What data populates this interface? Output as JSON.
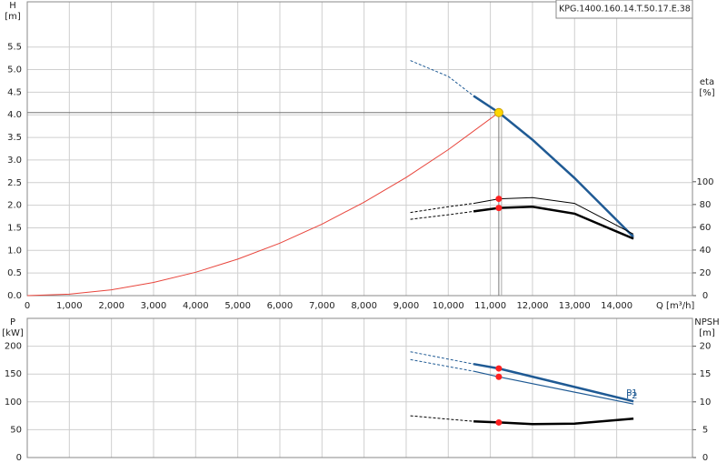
{
  "chart_data": [
    {
      "type": "line",
      "title": "KPG.1400.160.14.T.50.17.E.38",
      "ylabel": "H",
      "yunit": "[m]",
      "y2label": "eta",
      "y2unit": "[%]",
      "xlabel": "Q [m³/h]",
      "xlim": [
        0,
        15800
      ],
      "xticks": [
        {
          "value": 0,
          "label": "0"
        },
        {
          "value": 1000,
          "label": "1,000"
        },
        {
          "value": 2000,
          "label": "2,000"
        },
        {
          "value": 3000,
          "label": "3,000"
        },
        {
          "value": 4000,
          "label": "4,000"
        },
        {
          "value": 5000,
          "label": "5,000"
        },
        {
          "value": 6000,
          "label": "6,000"
        },
        {
          "value": 7000,
          "label": "7,000"
        },
        {
          "value": 8000,
          "label": "8,000"
        },
        {
          "value": 9000,
          "label": "9,000"
        },
        {
          "value": 10000,
          "label": "10,000"
        },
        {
          "value": 11000,
          "label": "11,000"
        },
        {
          "value": 12000,
          "label": "12,000"
        },
        {
          "value": 13000,
          "label": "13,000"
        },
        {
          "value": 14000,
          "label": "14,000"
        }
      ],
      "ylim": [
        0,
        6.5
      ],
      "yticks": [
        {
          "value": 0,
          "label": "0.0"
        },
        {
          "value": 0.5,
          "label": "0.5"
        },
        {
          "value": 1,
          "label": "1.0"
        },
        {
          "value": 1.5,
          "label": "1.5"
        },
        {
          "value": 2,
          "label": "2.0"
        },
        {
          "value": 2.5,
          "label": "2.5"
        },
        {
          "value": 3,
          "label": "3.0"
        },
        {
          "value": 3.5,
          "label": "3.5"
        },
        {
          "value": 4,
          "label": "4.0"
        },
        {
          "value": 4.5,
          "label": "4.5"
        },
        {
          "value": 5,
          "label": "5.0"
        },
        {
          "value": 5.5,
          "label": "5.5"
        }
      ],
      "y2lim": [
        0,
        258
      ],
      "y2ticks": [
        0,
        20,
        40,
        60,
        80,
        100
      ],
      "grid": true,
      "series": [
        {
          "color": "#e8453c",
          "width": 1,
          "x": [
            0,
            1000,
            2000,
            3000,
            4000,
            5000,
            6000,
            7000,
            8000,
            9000,
            10000,
            11200
          ],
          "values": [
            0,
            0.032,
            0.129,
            0.291,
            0.517,
            0.807,
            1.162,
            1.582,
            2.066,
            2.615,
            3.229,
            4.05
          ]
        },
        {
          "color": "#1f5a94",
          "width": 1,
          "dash": true,
          "x": [
            9100,
            10000,
            10600
          ],
          "values": [
            5.2,
            4.85,
            4.42
          ]
        },
        {
          "color": "#1f5a94",
          "width": 2.5,
          "x": [
            10600,
            11200,
            12000,
            13000,
            14400
          ],
          "values": [
            4.42,
            4.05,
            3.45,
            2.6,
            1.3
          ]
        },
        {
          "color": "#000000",
          "width": 1,
          "dash": true,
          "axis": "y2",
          "x": [
            9100,
            10000,
            10600
          ],
          "values": [
            73,
            78,
            81
          ]
        },
        {
          "color": "#000000",
          "width": 1,
          "axis": "y2",
          "x": [
            10600,
            11200,
            12000,
            13000,
            14400
          ],
          "values": [
            81,
            85,
            86,
            81,
            54
          ]
        },
        {
          "color": "#000000",
          "width": 1,
          "dash": true,
          "axis": "y2",
          "x": [
            9100,
            10000,
            10600
          ],
          "values": [
            67,
            71,
            74
          ]
        },
        {
          "color": "#000000",
          "width": 2.5,
          "axis": "y2",
          "x": [
            10600,
            11200,
            12000,
            13000,
            14400
          ],
          "values": [
            74,
            77,
            78,
            72,
            50
          ]
        }
      ],
      "points": [
        {
          "x": 11200,
          "value": 85,
          "axis": "y2",
          "color": "#ff2020"
        },
        {
          "x": 11200,
          "value": 77,
          "axis": "y2",
          "color": "#ff2020"
        }
      ],
      "operating_point": {
        "x": 11200,
        "value": 4.05,
        "color": "#ffd700"
      }
    },
    {
      "type": "line",
      "ylabel": "P",
      "yunit": "[kW]",
      "y2label": "NPSH",
      "y2unit": "[m]",
      "xlim": [
        0,
        15800
      ],
      "xticks": [
        0,
        1000,
        2000,
        3000,
        4000,
        5000,
        6000,
        7000,
        8000,
        9000,
        10000,
        11000,
        12000,
        13000,
        14000
      ],
      "xtick_labels": false,
      "ylim": [
        0,
        250
      ],
      "yticks": [
        0,
        50,
        100,
        150,
        200
      ],
      "y2lim": [
        0,
        25
      ],
      "y2ticks": [
        0,
        5,
        10,
        15,
        20
      ],
      "grid": true,
      "series": [
        {
          "color": "#1f5a94",
          "width": 1,
          "dash": true,
          "x": [
            9100,
            10600
          ],
          "values": [
            190,
            168
          ]
        },
        {
          "label": "P1",
          "color": "#1f5a94",
          "width": 2.5,
          "x": [
            10600,
            11200,
            14400
          ],
          "values": [
            168,
            160,
            101
          ]
        },
        {
          "color": "#1f5a94",
          "width": 1,
          "dash": true,
          "x": [
            9100,
            10600
          ],
          "values": [
            176,
            155
          ]
        },
        {
          "label": "P2",
          "color": "#1f5a94",
          "width": 1.2,
          "x": [
            10600,
            11200,
            14400
          ],
          "values": [
            155,
            145,
            96
          ]
        },
        {
          "color": "#000000",
          "width": 1,
          "dash": true,
          "axis": "y2",
          "x": [
            9100,
            10000,
            10600
          ],
          "values": [
            7.5,
            6.9,
            6.5
          ]
        },
        {
          "color": "#000000",
          "width": 2.5,
          "axis": "y2",
          "x": [
            10600,
            11200,
            12000,
            13000,
            14400
          ],
          "values": [
            6.5,
            6.3,
            6.0,
            6.1,
            7.0
          ]
        }
      ],
      "points": [
        {
          "x": 11200,
          "value": 160,
          "color": "#ff2020"
        },
        {
          "x": 11200,
          "value": 145,
          "color": "#ff2020"
        },
        {
          "x": 11200,
          "value": 6.3,
          "axis": "y2",
          "color": "#ff2020"
        }
      ]
    }
  ]
}
